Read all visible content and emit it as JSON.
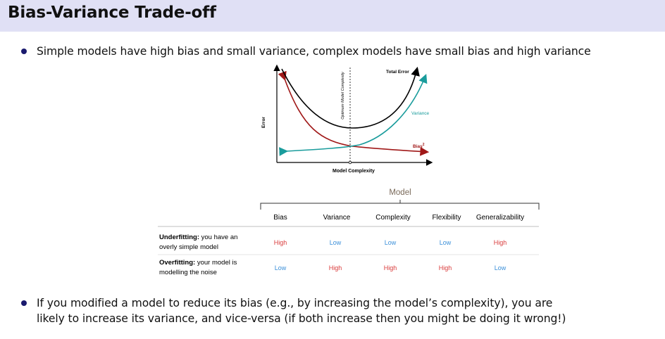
{
  "slide": {
    "title": "Bias-Variance Trade-off",
    "bullet1": "Simple models have high bias and small variance, complex models have small bias and high variance",
    "bullet2": "If you modified a model to reduce its bias (e.g., by increasing the model’s complexity), you are\nlikely to increase its variance, and vice-versa (if both increase then you might be doing it wrong!)"
  },
  "figure": {
    "y_axis_label": "Error",
    "x_axis_label": "Model Complexity",
    "optimum_label": "Optimum Model Complexity",
    "total_error_label": "Total Error",
    "variance_label": "Variance",
    "bias_label": "Bias",
    "bias_superscript": "2",
    "colors": {
      "total_error": "#000000",
      "variance": "#1a9c9c",
      "bias": "#a01818"
    }
  },
  "table": {
    "group_header": "Model",
    "columns": [
      "Bias",
      "Variance",
      "Complexity",
      "Flexibility",
      "Generalizability"
    ],
    "rows": [
      {
        "label_bold": "Underfitting:",
        "label_rest": " you have an",
        "label_line2": "overly simple model",
        "values": [
          "High",
          "Low",
          "Low",
          "Low",
          "High"
        ]
      },
      {
        "label_bold": "Overfitting:",
        "label_rest": " your model is",
        "label_line2": "modelling the noise",
        "values": [
          "Low",
          "High",
          "High",
          "High",
          "Low"
        ]
      }
    ],
    "colors": {
      "High": "#d93a3a",
      "Low": "#3a8fd9"
    }
  }
}
